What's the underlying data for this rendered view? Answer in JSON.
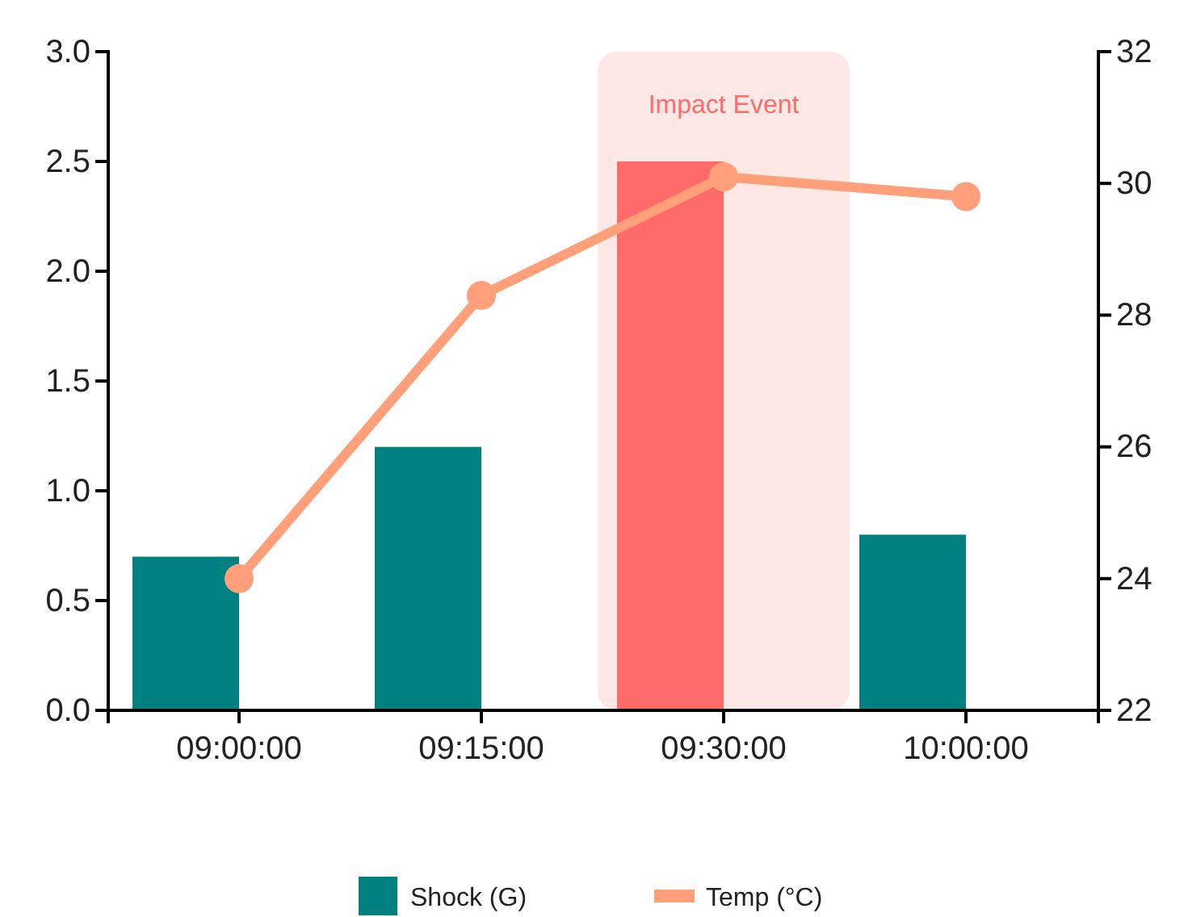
{
  "chart_data": {
    "type": "bar",
    "categories": [
      "09:00:00",
      "09:15:00",
      "09:30:00",
      "10:00:00"
    ],
    "series": [
      {
        "name": "Shock (G)",
        "type": "bar",
        "color": "#008080",
        "colors": [
          "#008080",
          "#008080",
          "#ff6b6b",
          "#008080"
        ],
        "values": [
          0.7,
          1.2,
          2.5,
          0.8
        ]
      },
      {
        "name": "Temp (°C)",
        "type": "line",
        "axis": "y2",
        "color": "#ffa07a",
        "values": [
          24,
          28.3,
          30.1,
          29.8
        ]
      }
    ],
    "ylim": [
      0,
      3
    ],
    "yticks": [
      {
        "value": 0,
        "label": "0.0"
      },
      {
        "value": 0.5,
        "label": "0.5"
      },
      {
        "value": 1,
        "label": "1.0"
      },
      {
        "value": 1.5,
        "label": "1.5"
      },
      {
        "value": 2,
        "label": "2.0"
      },
      {
        "value": 2.5,
        "label": "2.5"
      },
      {
        "value": 3,
        "label": "3.0"
      }
    ],
    "y2lim": [
      22,
      32
    ],
    "y2ticks": [
      22,
      24,
      26,
      28,
      30,
      32
    ],
    "bands": [
      {
        "axis": "x",
        "from": "09:30:00",
        "to": "09:30:00",
        "label": "Impact Event",
        "color": "#fde8e6"
      }
    ],
    "marker": "circle",
    "grid": false,
    "legend": "bottom"
  }
}
